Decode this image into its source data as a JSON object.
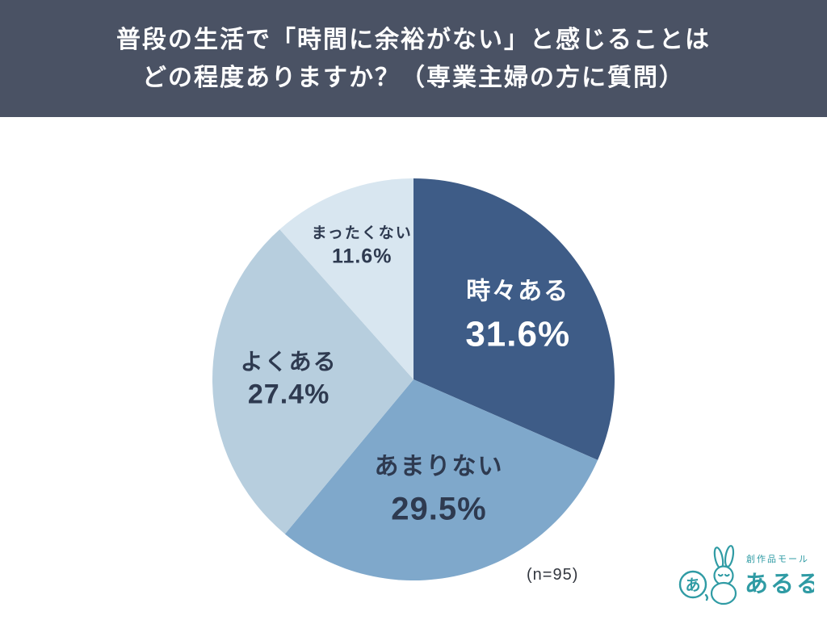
{
  "header": {
    "title_line1": "普段の生活で「時間に余裕がない」と感じることは",
    "title_line2": "どの程度ありますか？（専業主婦の方に質問）"
  },
  "chart_data": {
    "type": "pie",
    "title": "普段の生活で「時間に余裕がない」と感じることはどの程度ありますか？（専業主婦の方に質問）",
    "n": 95,
    "start_angle_deg": 0,
    "direction": "clockwise",
    "legend_position": "none",
    "slices": [
      {
        "label": "時々ある",
        "value": 31.6,
        "value_label": "31.6%",
        "color": "#3e5c87",
        "text_color": "#ffffff"
      },
      {
        "label": "あまりない",
        "value": 29.5,
        "value_label": "29.5%",
        "color": "#7fa8cb",
        "text_color": "#2e3a50"
      },
      {
        "label": "よくある",
        "value": 27.4,
        "value_label": "27.4%",
        "color": "#b7cede",
        "text_color": "#2e3a50"
      },
      {
        "label": "まったくない",
        "value": 11.6,
        "value_label": "11.6%",
        "color": "#d8e6f0",
        "text_color": "#2e3a50"
      }
    ]
  },
  "footer": {
    "sample_size": "(n=95)"
  },
  "logo": {
    "brand_small": "創作品モール",
    "brand_large": "あるる",
    "color": "#2f9ba4"
  }
}
